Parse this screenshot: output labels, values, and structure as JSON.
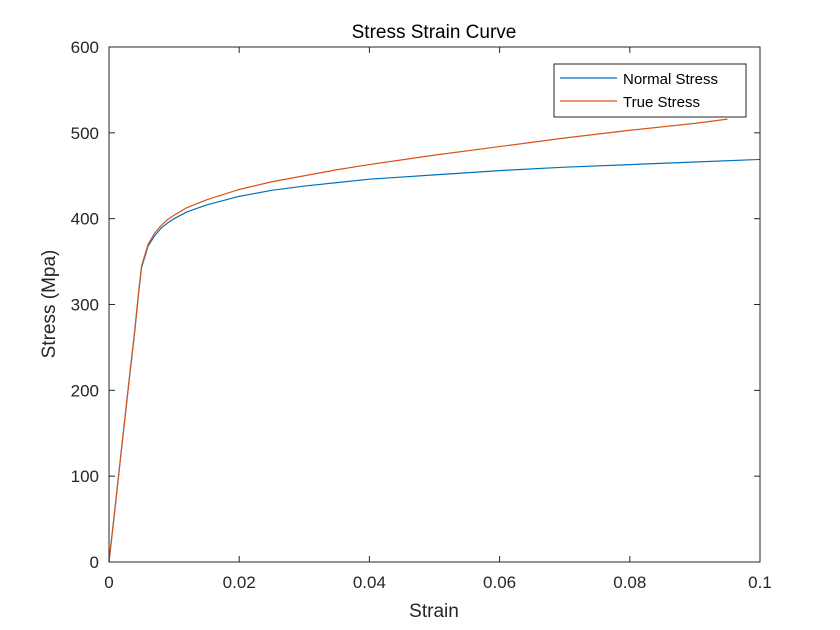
{
  "chart_data": {
    "type": "line",
    "title": "Stress Strain Curve",
    "xlabel": "Strain",
    "ylabel": "Stress (Mpa)",
    "xlim": [
      0,
      0.1
    ],
    "ylim": [
      0,
      600
    ],
    "xticks": [
      0,
      0.02,
      0.04,
      0.06,
      0.08,
      0.1
    ],
    "xtick_labels": [
      "0",
      "0.02",
      "0.04",
      "0.06",
      "0.08",
      "0.1"
    ],
    "yticks": [
      0,
      100,
      200,
      300,
      400,
      500,
      600
    ],
    "ytick_labels": [
      "0",
      "100",
      "200",
      "300",
      "400",
      "500",
      "600"
    ],
    "grid": false,
    "legend_position": "top-right",
    "series": [
      {
        "name": "Normal Stress",
        "color": "#0072BD",
        "points": [
          [
            0,
            0
          ],
          [
            0.001,
            68
          ],
          [
            0.002,
            137
          ],
          [
            0.003,
            205
          ],
          [
            0.004,
            272
          ],
          [
            0.0045,
            310
          ],
          [
            0.005,
            343
          ],
          [
            0.006,
            368
          ],
          [
            0.007,
            380
          ],
          [
            0.008,
            389
          ],
          [
            0.009,
            395
          ],
          [
            0.01,
            400
          ],
          [
            0.012,
            408
          ],
          [
            0.015,
            416
          ],
          [
            0.02,
            426
          ],
          [
            0.025,
            433
          ],
          [
            0.03,
            438
          ],
          [
            0.035,
            442
          ],
          [
            0.04,
            446
          ],
          [
            0.05,
            451
          ],
          [
            0.06,
            456
          ],
          [
            0.07,
            460
          ],
          [
            0.08,
            463
          ],
          [
            0.09,
            466
          ],
          [
            0.1,
            469
          ]
        ]
      },
      {
        "name": "True Stress",
        "color": "#D95319",
        "points": [
          [
            0,
            0
          ],
          [
            0.001,
            68
          ],
          [
            0.002,
            137
          ],
          [
            0.003,
            206
          ],
          [
            0.004,
            273
          ],
          [
            0.0045,
            311
          ],
          [
            0.005,
            345
          ],
          [
            0.006,
            370
          ],
          [
            0.007,
            383
          ],
          [
            0.008,
            392
          ],
          [
            0.009,
            399
          ],
          [
            0.01,
            404
          ],
          [
            0.012,
            413
          ],
          [
            0.015,
            422
          ],
          [
            0.02,
            434
          ],
          [
            0.025,
            443
          ],
          [
            0.03,
            450
          ],
          [
            0.035,
            457
          ],
          [
            0.04,
            463
          ],
          [
            0.05,
            474
          ],
          [
            0.06,
            484
          ],
          [
            0.07,
            494
          ],
          [
            0.08,
            503
          ],
          [
            0.09,
            511
          ],
          [
            0.095,
            516
          ]
        ]
      }
    ]
  }
}
